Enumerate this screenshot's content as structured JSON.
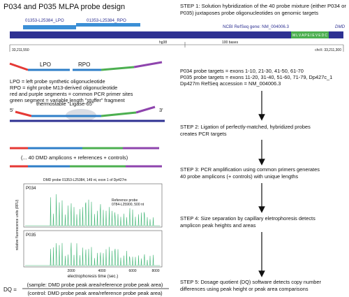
{
  "title": "P034 and P035 MLPA probe design",
  "steps": [
    [
      "STEP 1: Solution hybridization of the 40 probe mixture (either P034 or",
      "P035) juxtaposes probe oligonucleotides on genomic targets"
    ],
    [
      "STEP 2: Ligation of perfectly-matched, hybridized probes",
      "creates PCR targets"
    ],
    [
      "STEP 3: PCR amplification using common primers generates",
      "40 probe amplicons (+ controls) with unique lengths"
    ],
    [
      "STEP 4: Size separation by capillary eletrophoresis detects",
      "amplicon peak heights and areas"
    ],
    [
      "STEP 5: Dosage quotient (DQ) software detects copy number",
      "differences using peak height or peak area comparisons"
    ]
  ],
  "genome": {
    "lpo_label": "01353-L25384_LPO",
    "rpo_label": "01353-L25384_RPO",
    "refseq_label": "NCBI RefSeq gene: NM_004006.3",
    "gene": "DMD",
    "exon_sequence": "M L V A P E I E V E D C",
    "coord_left": "33,211,550",
    "assembly": "hg38",
    "scale": "100 bases",
    "coord_right": "chrX: 33,211,300"
  },
  "probes": {
    "lpo": "LPO",
    "rpo": "RPO",
    "legend": [
      "LPO = left probe synthetic oligonucleotide",
      "RPO = right probe M13-derived oligonucleotide",
      "red and purple segments = common PCR primer sites",
      "green segment = variable length \"stuffer\" fragment"
    ]
  },
  "targets": [
    "P034 probe targets = exons 1-10, 21-30, 41-50, 61-70",
    "P035 probe targets = exons 11-20, 31-40, 51-60, 71-79, Dp427c_1",
    "Dp427m RefSeq accession = NM_004006.3"
  ],
  "ligation": {
    "five": "5'",
    "three": "3'",
    "ligase": "thermostable \"Ligase-65\""
  },
  "amplicons": "(... 40 DMD amplicons + references + controls)",
  "electro": {
    "header": "DMD probe 01353-L25384, 149 nt, exon 1 of Dp427m",
    "panel1": "P034",
    "panel2": "P035",
    "reference": [
      "Reference probe",
      "0784-L25900, 500 nt"
    ],
    "ylabel": "relative fluorescence units (RFU)",
    "xlabel": "electrophoresis time (sec.)",
    "xticks": [
      "2000",
      "4000",
      "6000",
      "8000"
    ]
  },
  "dq": {
    "label": "DQ =",
    "numerator": "(sample: DMD probe peak area/reference probe peak area)",
    "denominator": "(control: DMD probe peak area/reference probe peak area)"
  }
}
